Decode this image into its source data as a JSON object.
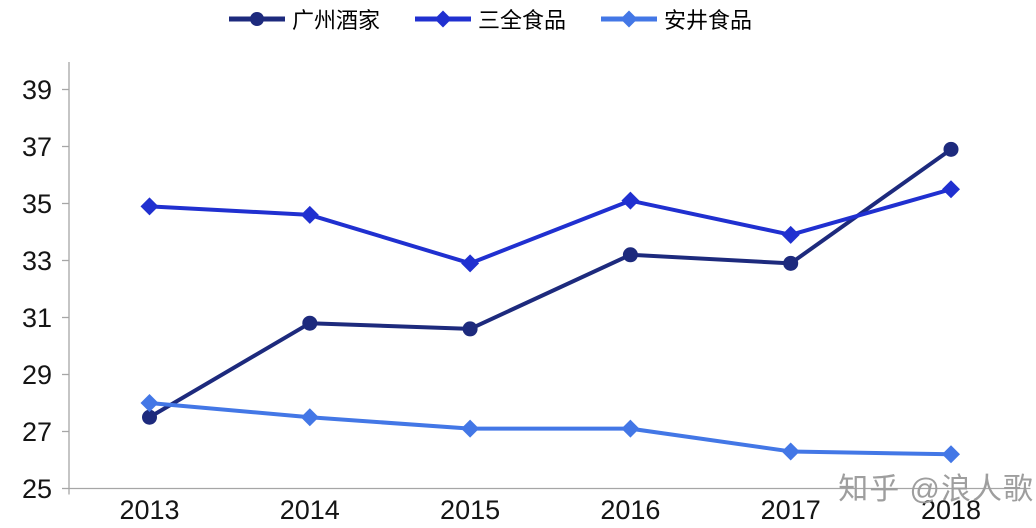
{
  "watermark": {
    "text": "知乎 @浪人歌"
  },
  "chart_data": {
    "type": "line",
    "title": "",
    "xlabel": "",
    "ylabel": "",
    "categories": [
      "2013",
      "2014",
      "2015",
      "2016",
      "2017",
      "2018"
    ],
    "series": [
      {
        "name": "广州酒家",
        "marker": "circle",
        "color": "#1d2a7d",
        "values": [
          27.5,
          30.8,
          30.6,
          33.2,
          32.9,
          36.9
        ]
      },
      {
        "name": "三全食品",
        "marker": "diamond",
        "color": "#2030d0",
        "values": [
          34.9,
          34.6,
          32.9,
          35.1,
          33.9,
          35.5
        ]
      },
      {
        "name": "安井食品",
        "marker": "diamond",
        "color": "#4377e6",
        "values": [
          28.0,
          27.5,
          27.1,
          27.1,
          26.3,
          26.2
        ]
      }
    ],
    "ylim": [
      25,
      39
    ],
    "y_ticks": [
      25,
      27,
      29,
      31,
      33,
      35,
      37,
      39
    ],
    "grid": false,
    "legend_position": "top",
    "axis_color": "#a6a6a6",
    "tick_label_color": "#151515"
  }
}
